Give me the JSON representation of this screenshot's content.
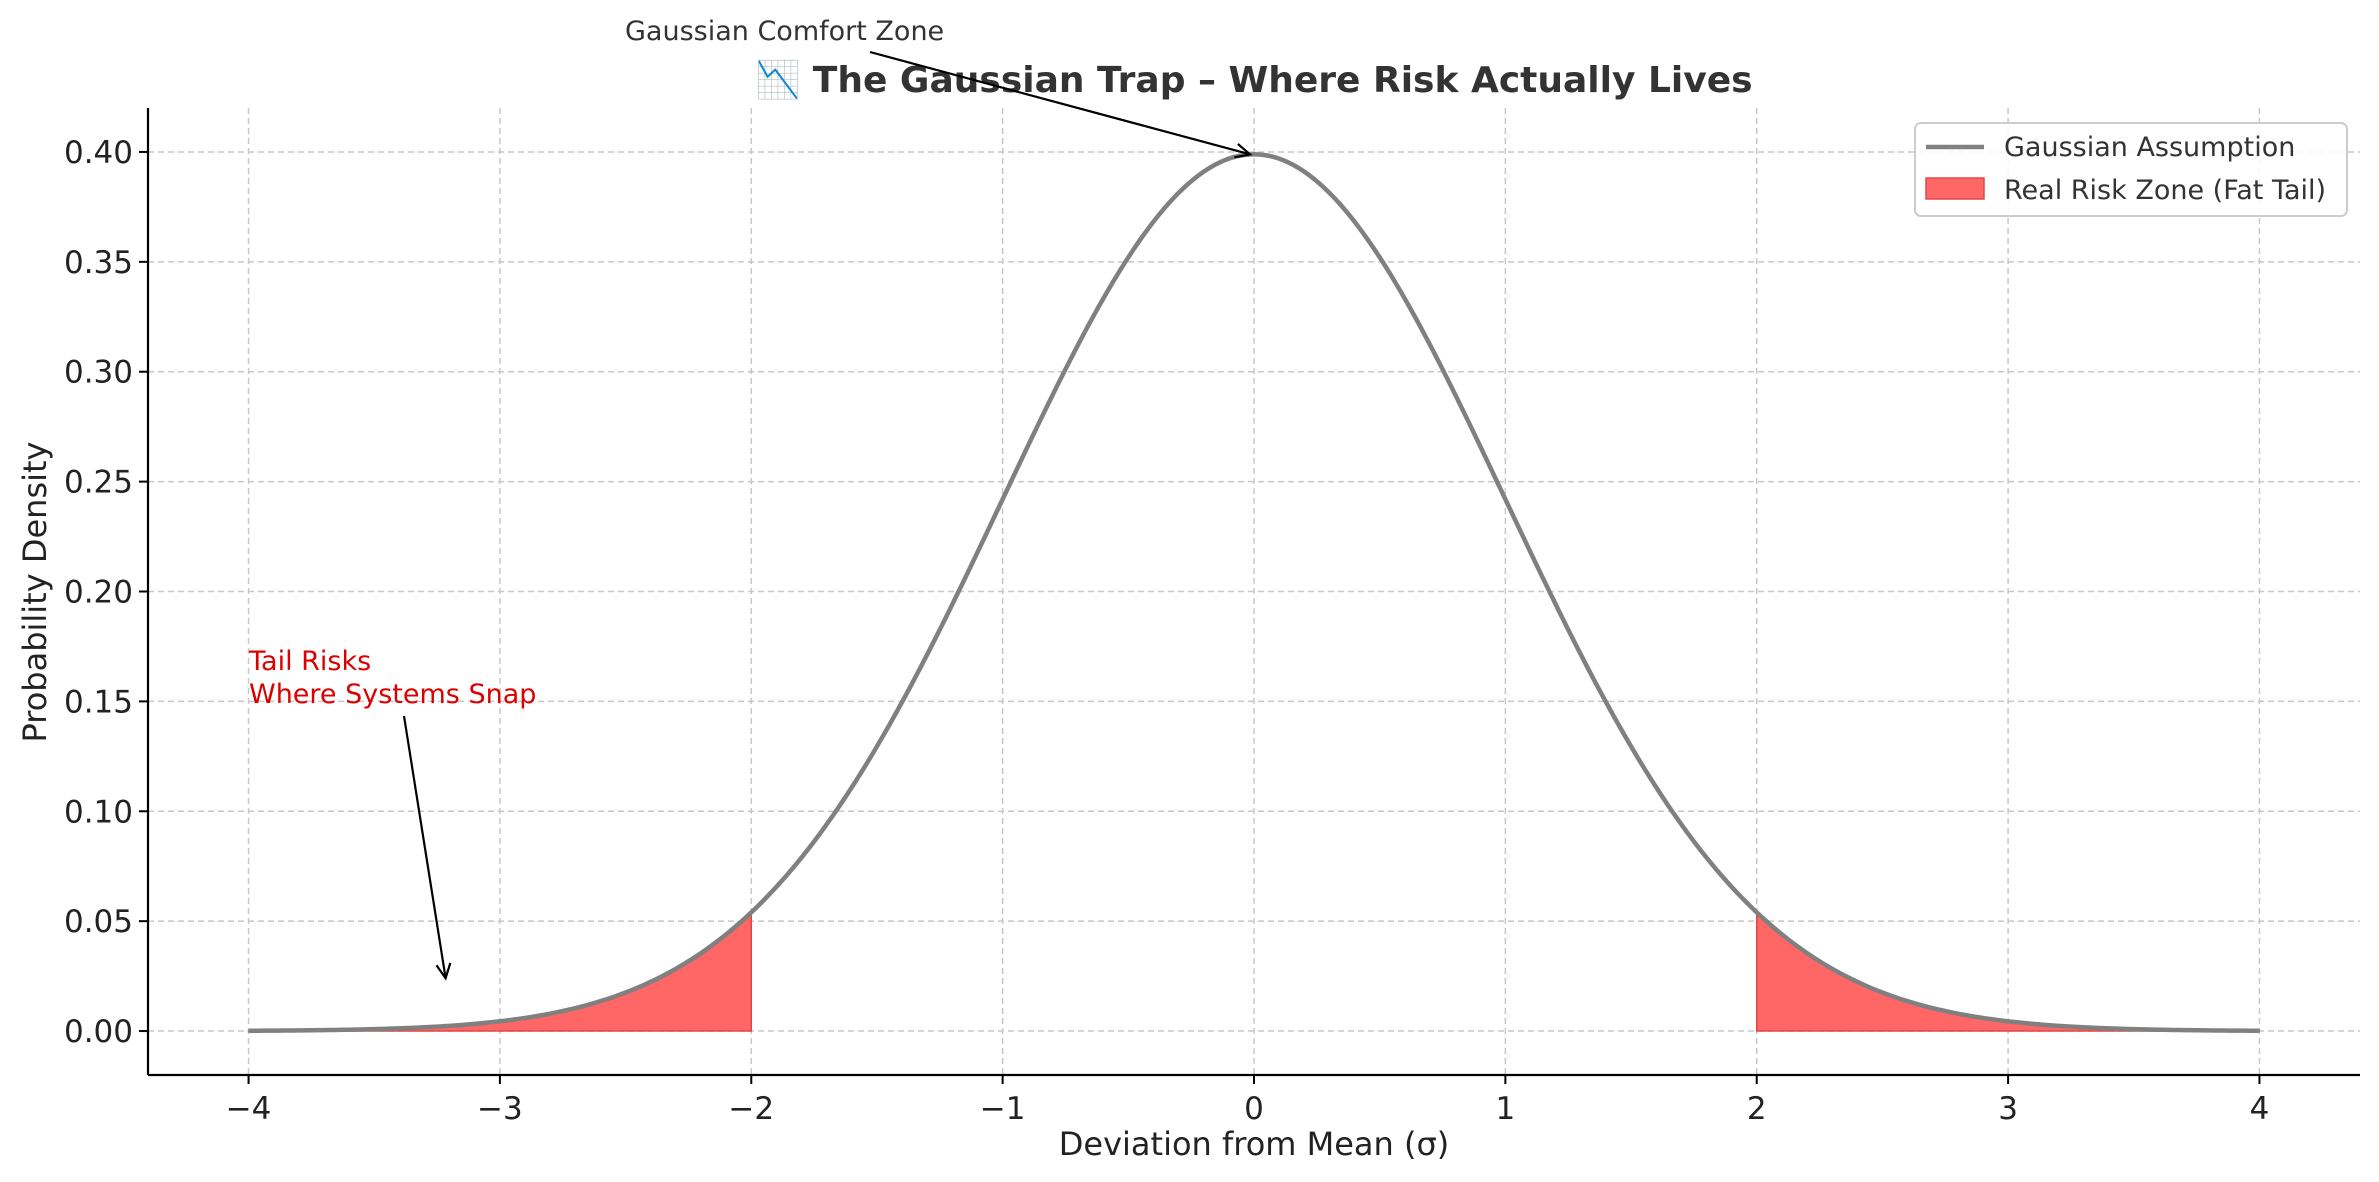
{
  "chart_data": {
    "type": "line",
    "title": "📉 The Gaussian Trap – Where Risk Actually Lives",
    "xlabel": "Deviation from Mean (σ)",
    "ylabel": "Probability Density",
    "xlim": [
      -4.4,
      4.4
    ],
    "ylim": [
      -0.02,
      0.42
    ],
    "x_ticks": [
      -4,
      -3,
      -2,
      -1,
      0,
      1,
      2,
      3,
      4
    ],
    "x_tick_labels": [
      "−4",
      "−3",
      "−2",
      "−1",
      "0",
      "1",
      "2",
      "3",
      "4"
    ],
    "y_ticks": [
      0.0,
      0.05,
      0.1,
      0.15,
      0.2,
      0.25,
      0.3,
      0.35,
      0.4
    ],
    "y_tick_labels": [
      "0.00",
      "0.05",
      "0.10",
      "0.15",
      "0.20",
      "0.25",
      "0.30",
      "0.35",
      "0.40"
    ],
    "grid": true,
    "legend_position": "top-right",
    "series": [
      {
        "name": "Gaussian Assumption",
        "kind": "line",
        "color": "#808080",
        "x": [
          -4.0,
          -3.8,
          -3.6,
          -3.4,
          -3.2,
          -3.0,
          -2.8,
          -2.6,
          -2.4,
          -2.2,
          -2.0,
          -1.8,
          -1.6,
          -1.4,
          -1.2,
          -1.0,
          -0.8,
          -0.6,
          -0.4,
          -0.2,
          0.0,
          0.2,
          0.4,
          0.6,
          0.8,
          1.0,
          1.2,
          1.4,
          1.6,
          1.8,
          2.0,
          2.2,
          2.4,
          2.6,
          2.8,
          3.0,
          3.2,
          3.4,
          3.6,
          3.8,
          4.0
        ],
        "y": [
          0.0001,
          0.0003,
          0.0006,
          0.0012,
          0.0024,
          0.0044,
          0.0079,
          0.0136,
          0.0224,
          0.0355,
          0.054,
          0.079,
          0.1109,
          0.1497,
          0.1942,
          0.242,
          0.2897,
          0.3332,
          0.3683,
          0.391,
          0.3989,
          0.391,
          0.3683,
          0.3332,
          0.2897,
          0.242,
          0.1942,
          0.1497,
          0.1109,
          0.079,
          0.054,
          0.0355,
          0.0224,
          0.0136,
          0.0079,
          0.0044,
          0.0024,
          0.0012,
          0.0006,
          0.0003,
          0.0001
        ]
      },
      {
        "name": "Real Risk Zone (Fat Tail)",
        "kind": "area",
        "color": "#ff6666",
        "ranges": [
          [
            -4,
            -2
          ],
          [
            2,
            4
          ]
        ]
      }
    ],
    "annotations": [
      {
        "text": "Gaussian Comfort Zone",
        "point": [
          0.0,
          0.3989
        ],
        "color": "#333333"
      },
      {
        "lines": [
          "Tail Risks",
          "Where Systems Snap"
        ],
        "point": [
          -3.2,
          0.024
        ],
        "color": "#dd0000"
      }
    ]
  }
}
